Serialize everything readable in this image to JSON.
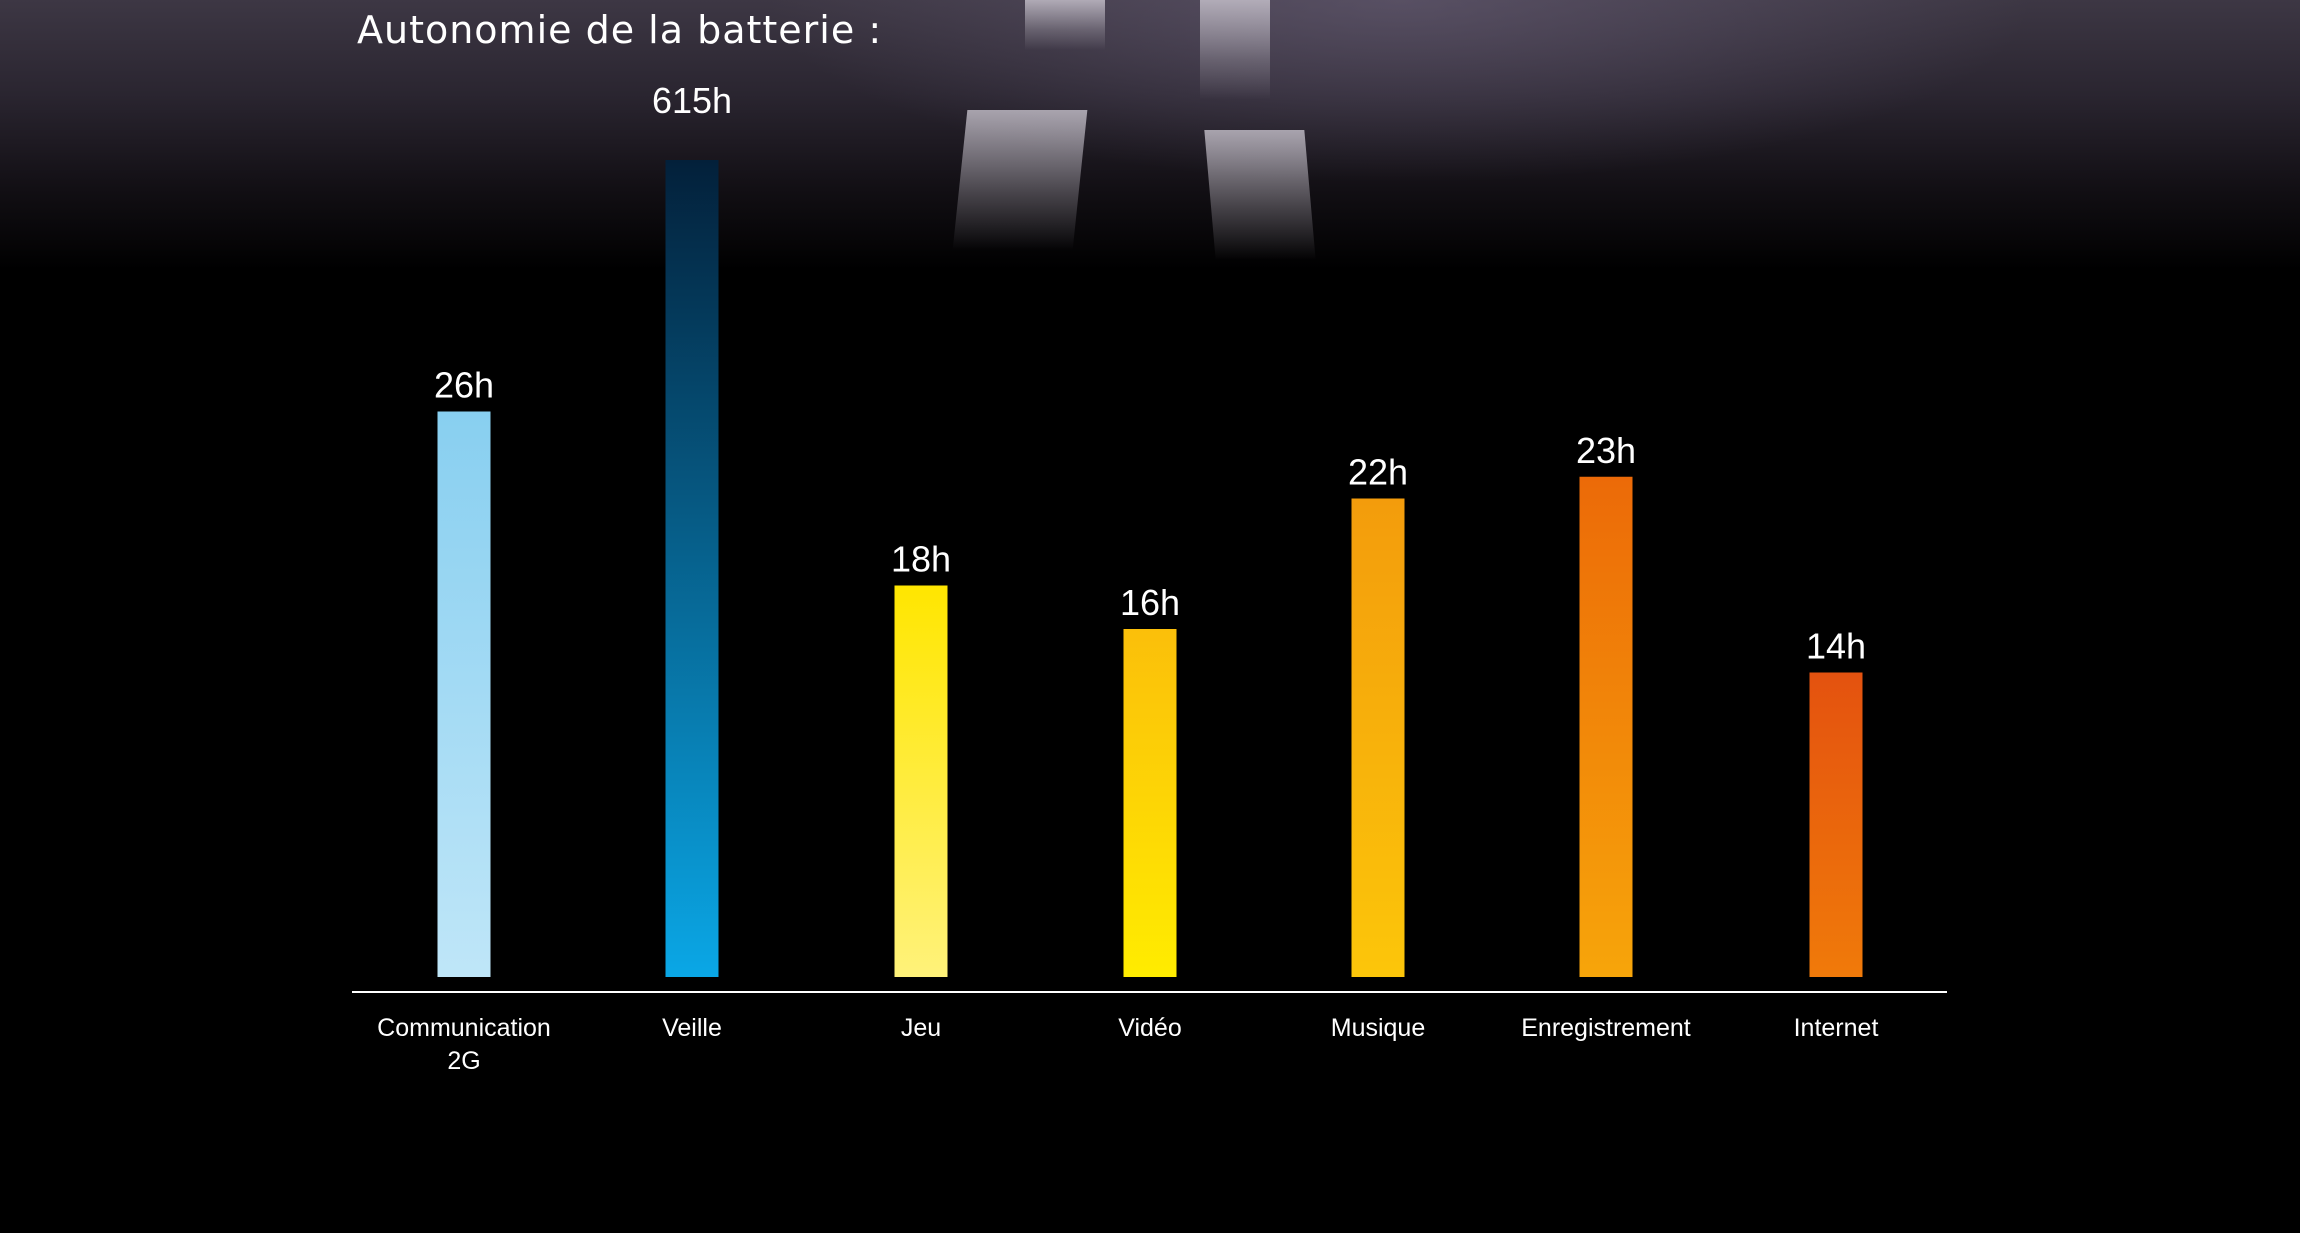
{
  "chart_data": {
    "type": "bar",
    "title": "Autonomie de la batterie :",
    "categories": [
      [
        "Communication",
        "2G"
      ],
      [
        "Veille"
      ],
      [
        "Jeu"
      ],
      [
        "Vidéo"
      ],
      [
        "Musique"
      ],
      [
        "Enregistrement"
      ],
      [
        "Internet"
      ]
    ],
    "values": [
      26,
      615,
      18,
      16,
      22,
      23,
      14
    ],
    "value_labels": [
      "26h",
      "615h",
      "18h",
      "16h",
      "22h",
      "23h",
      "14h"
    ],
    "unit": "h",
    "grid": false,
    "legend": "none",
    "colors": [
      [
        "#88cff0",
        "#bfe6f8"
      ],
      [
        "#03203a",
        "#0aa7e6"
      ],
      [
        "#ffe600",
        "#fff27a"
      ],
      [
        "#fbbf0a",
        "#ffec00"
      ],
      [
        "#f39c0c",
        "#fcc60a"
      ],
      [
        "#ec6a08",
        "#f7a50a"
      ],
      [
        "#e4520f",
        "#f07a0a"
      ]
    ]
  }
}
